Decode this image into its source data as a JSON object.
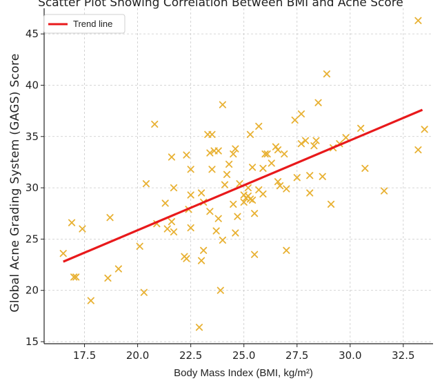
{
  "chart_data": {
    "type": "scatter",
    "title": "Scatter Plot Showing Correlation Between BMI and Acne Score",
    "xlabel": "Body Mass Index (BMI, kg/m²)",
    "ylabel": "Global Acne Grading System (GAGS) Score",
    "xlim": [
      15.6,
      33.9
    ],
    "ylim": [
      14.8,
      47.5
    ],
    "xticks": [
      17.5,
      20.0,
      22.5,
      25.0,
      27.5,
      30.0,
      32.5
    ],
    "xtick_labels": [
      "17.5",
      "20.0",
      "22.5",
      "25.0",
      "27.5",
      "30.0",
      "32.5"
    ],
    "yticks": [
      15,
      20,
      25,
      30,
      35,
      40,
      45
    ],
    "ytick_labels": [
      "15",
      "20",
      "25",
      "30",
      "35",
      "40",
      "45"
    ],
    "grid": true,
    "legend_position": "top-left",
    "marker_color": "#e8b133",
    "line_color": "#e8191b",
    "series": [
      {
        "kind": "scatter",
        "marker": "x",
        "points": [
          [
            16.5,
            23.6
          ],
          [
            16.9,
            26.6
          ],
          [
            17.0,
            21.3
          ],
          [
            17.1,
            21.3
          ],
          [
            17.4,
            26.0
          ],
          [
            17.8,
            19.0
          ],
          [
            18.6,
            21.2
          ],
          [
            18.7,
            27.1
          ],
          [
            19.1,
            22.1
          ],
          [
            20.1,
            24.3
          ],
          [
            20.3,
            19.8
          ],
          [
            20.4,
            30.4
          ],
          [
            20.8,
            36.2
          ],
          [
            20.9,
            26.5
          ],
          [
            21.3,
            28.5
          ],
          [
            21.4,
            26.0
          ],
          [
            21.6,
            26.7
          ],
          [
            21.6,
            33.0
          ],
          [
            21.7,
            25.7
          ],
          [
            21.7,
            30.0
          ],
          [
            22.2,
            23.3
          ],
          [
            22.3,
            23.1
          ],
          [
            22.3,
            33.2
          ],
          [
            22.4,
            27.9
          ],
          [
            22.5,
            31.8
          ],
          [
            22.5,
            29.3
          ],
          [
            22.5,
            26.1
          ],
          [
            22.9,
            16.4
          ],
          [
            23.0,
            22.9
          ],
          [
            23.0,
            29.5
          ],
          [
            23.1,
            23.9
          ],
          [
            23.1,
            28.6
          ],
          [
            23.3,
            35.2
          ],
          [
            23.4,
            33.4
          ],
          [
            23.4,
            27.7
          ],
          [
            23.5,
            35.2
          ],
          [
            23.5,
            31.8
          ],
          [
            23.6,
            33.6
          ],
          [
            23.7,
            25.8
          ],
          [
            23.8,
            33.6
          ],
          [
            23.8,
            27.0
          ],
          [
            23.9,
            20.0
          ],
          [
            24.0,
            24.9
          ],
          [
            24.0,
            38.1
          ],
          [
            24.1,
            30.3
          ],
          [
            24.2,
            31.3
          ],
          [
            24.3,
            32.3
          ],
          [
            24.5,
            28.4
          ],
          [
            24.5,
            33.3
          ],
          [
            24.6,
            25.6
          ],
          [
            24.6,
            33.8
          ],
          [
            24.7,
            27.2
          ],
          [
            24.8,
            30.4
          ],
          [
            25.0,
            29.3
          ],
          [
            25.0,
            28.6
          ],
          [
            25.1,
            29.0
          ],
          [
            25.2,
            29.2
          ],
          [
            25.2,
            30.0
          ],
          [
            25.3,
            35.2
          ],
          [
            25.3,
            28.9
          ],
          [
            25.4,
            32.0
          ],
          [
            25.4,
            28.8
          ],
          [
            25.5,
            27.5
          ],
          [
            25.5,
            23.5
          ],
          [
            25.7,
            29.8
          ],
          [
            25.7,
            36.0
          ],
          [
            25.9,
            31.9
          ],
          [
            25.9,
            29.4
          ],
          [
            26.0,
            33.3
          ],
          [
            26.1,
            33.3
          ],
          [
            26.3,
            32.4
          ],
          [
            26.5,
            34.0
          ],
          [
            26.6,
            33.7
          ],
          [
            26.6,
            30.6
          ],
          [
            26.7,
            30.2
          ],
          [
            26.9,
            33.3
          ],
          [
            27.0,
            23.9
          ],
          [
            27.0,
            29.9
          ],
          [
            27.4,
            36.6
          ],
          [
            27.5,
            31.0
          ],
          [
            27.7,
            37.2
          ],
          [
            27.7,
            34.3
          ],
          [
            27.9,
            34.6
          ],
          [
            28.1,
            29.5
          ],
          [
            28.1,
            31.2
          ],
          [
            28.3,
            34.1
          ],
          [
            28.4,
            34.6
          ],
          [
            28.5,
            38.3
          ],
          [
            28.7,
            31.1
          ],
          [
            28.9,
            41.1
          ],
          [
            29.1,
            28.4
          ],
          [
            29.2,
            33.9
          ],
          [
            29.5,
            34.3
          ],
          [
            29.8,
            34.9
          ],
          [
            30.5,
            35.8
          ],
          [
            30.7,
            31.9
          ],
          [
            31.6,
            29.7
          ],
          [
            33.2,
            46.3
          ],
          [
            33.2,
            33.7
          ],
          [
            33.5,
            35.7
          ]
        ]
      },
      {
        "kind": "line",
        "name": "Trend line",
        "x": [
          16.5,
          33.4
        ],
        "y": [
          22.8,
          37.6
        ]
      }
    ]
  }
}
